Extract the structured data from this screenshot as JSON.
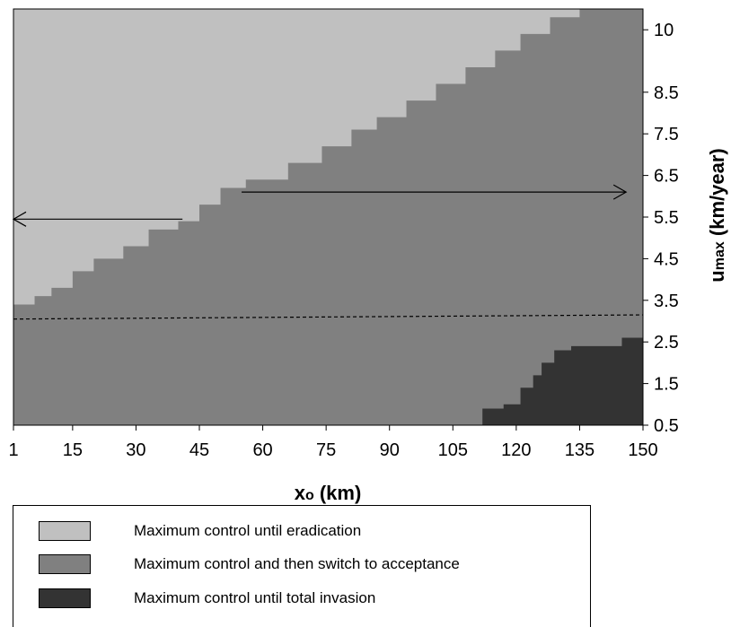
{
  "chart_data": {
    "type": "heatmap",
    "title": "",
    "xlabel": "xo (km)",
    "ylabel": "umax (km/year)",
    "x_ticks": [
      1,
      15,
      30,
      45,
      60,
      75,
      90,
      105,
      120,
      135,
      150
    ],
    "y_ticks": [
      0.5,
      1.5,
      2.5,
      3.5,
      4.5,
      5.5,
      6.5,
      7.5,
      8.5,
      10
    ],
    "xlim": [
      1,
      150
    ],
    "ylim": [
      0.5,
      10.5
    ],
    "y_axis_side": "right",
    "legend_position": "bottom",
    "regions": [
      {
        "name": "Maximum control until eradication",
        "color": "#c0c0c0",
        "description_level": "top-left",
        "boundary_with_next": [
          [
            1,
            3.0
          ],
          [
            1,
            3.4
          ],
          [
            6,
            3.4
          ],
          [
            6,
            3.6
          ],
          [
            10,
            3.6
          ],
          [
            10,
            3.8
          ],
          [
            15,
            3.8
          ],
          [
            15,
            4.2
          ],
          [
            20,
            4.2
          ],
          [
            20,
            4.5
          ],
          [
            27,
            4.5
          ],
          [
            27,
            4.8
          ],
          [
            33,
            4.8
          ],
          [
            33,
            5.2
          ],
          [
            40,
            5.2
          ],
          [
            40,
            5.4
          ],
          [
            45,
            5.4
          ],
          [
            45,
            5.8
          ],
          [
            50,
            5.8
          ],
          [
            50,
            6.2
          ],
          [
            56,
            6.2
          ],
          [
            56,
            6.4
          ],
          [
            66,
            6.4
          ],
          [
            66,
            6.8
          ],
          [
            74,
            6.8
          ],
          [
            74,
            7.2
          ],
          [
            81,
            7.2
          ],
          [
            81,
            7.6
          ],
          [
            87,
            7.6
          ],
          [
            87,
            7.9
          ],
          [
            94,
            7.9
          ],
          [
            94,
            8.3
          ],
          [
            101,
            8.3
          ],
          [
            101,
            8.7
          ],
          [
            108,
            8.7
          ],
          [
            108,
            9.1
          ],
          [
            115,
            9.1
          ],
          [
            115,
            9.5
          ],
          [
            121,
            9.5
          ],
          [
            121,
            9.9
          ],
          [
            128,
            9.9
          ],
          [
            128,
            10.3
          ],
          [
            135,
            10.3
          ],
          [
            135,
            10.5
          ]
        ]
      },
      {
        "name": "Maximum control and then switch to acceptance",
        "color": "#808080"
      },
      {
        "name": "Maximum control until total invasion",
        "color": "#333333",
        "boundary_with_previous": [
          [
            112,
            0.5
          ],
          [
            112,
            0.9
          ],
          [
            117,
            0.9
          ],
          [
            117,
            1.0
          ],
          [
            121,
            1.0
          ],
          [
            121,
            1.4
          ],
          [
            124,
            1.4
          ],
          [
            124,
            1.7
          ],
          [
            126,
            1.7
          ],
          [
            126,
            2.0
          ],
          [
            129,
            2.0
          ],
          [
            129,
            2.3
          ],
          [
            133,
            2.3
          ],
          [
            133,
            2.4
          ],
          [
            145,
            2.4
          ],
          [
            145,
            2.6
          ],
          [
            150,
            2.6
          ],
          [
            150,
            0.5
          ]
        ]
      }
    ],
    "reference_line": {
      "style": "dashed",
      "points": [
        [
          1,
          3.05
        ],
        [
          150,
          3.15
        ]
      ]
    },
    "arrows": [
      {
        "from": [
          41,
          5.45
        ],
        "to": [
          1,
          5.45
        ]
      },
      {
        "from": [
          55,
          6.1
        ],
        "to": [
          146,
          6.1
        ]
      }
    ]
  },
  "legend": {
    "items": [
      {
        "label": "Maximum control until eradication",
        "color": "#c0c0c0"
      },
      {
        "label": "Maximum control and then switch to acceptance",
        "color": "#808080"
      },
      {
        "label": "Maximum control until total invasion",
        "color": "#333333"
      }
    ]
  }
}
